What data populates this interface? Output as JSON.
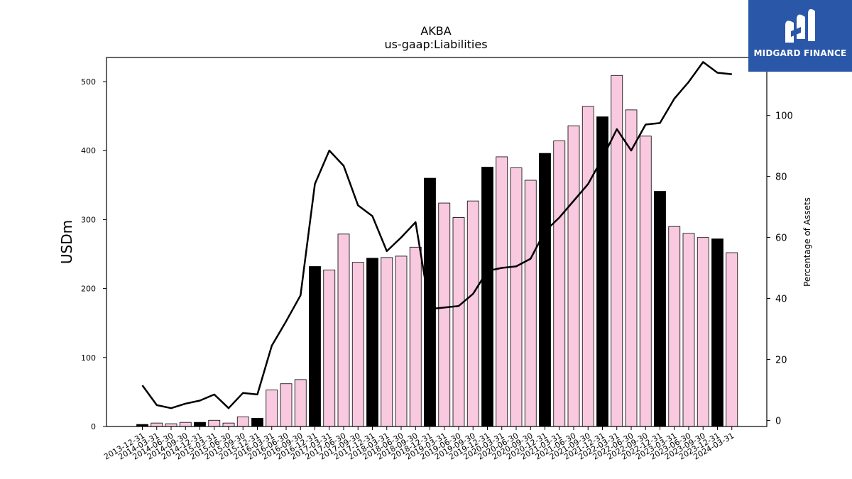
{
  "logo": {
    "text": "MIDGARD FINANCE"
  },
  "chart_data": {
    "type": "bar",
    "title": "AKBA",
    "subtitle": "us-gaap:Liabilities",
    "ylabel": "USDm",
    "y2label": "Percentage of Assets",
    "ylim": [
      0,
      535
    ],
    "y2lim": [
      -2,
      119
    ],
    "yticks": [
      0,
      100,
      200,
      300,
      400,
      500
    ],
    "y2ticks": [
      0,
      20,
      40,
      60,
      80,
      100
    ],
    "colors": {
      "annual": "#000000",
      "quarter": "#f9c9e0",
      "edge": "#000000",
      "line": "#000000"
    },
    "categories": [
      "2013-12-31",
      "2014-03-31",
      "2014-06-30",
      "2014-09-30",
      "2014-12-31",
      "2015-03-31",
      "2015-06-30",
      "2015-09-30",
      "2015-12-31",
      "2016-03-31",
      "2016-06-30",
      "2016-09-30",
      "2016-12-31",
      "2017-03-31",
      "2017-06-30",
      "2017-09-30",
      "2017-12-31",
      "2018-03-31",
      "2018-06-30",
      "2018-09-30",
      "2018-12-31",
      "2019-03-31",
      "2019-06-30",
      "2019-09-30",
      "2019-12-31",
      "2020-03-31",
      "2020-06-30",
      "2020-09-30",
      "2020-12-31",
      "2021-03-31",
      "2021-06-30",
      "2021-09-30",
      "2021-12-31",
      "2022-03-31",
      "2022-06-30",
      "2022-09-30",
      "2022-12-31",
      "2023-03-31",
      "2023-06-30",
      "2023-09-30",
      "2023-12-31",
      "2024-03-31"
    ],
    "series": [
      {
        "type": "bar",
        "values": [
          3,
          5,
          4,
          6,
          6,
          9,
          5,
          14,
          12,
          53,
          62,
          68,
          232,
          227,
          279,
          238,
          244,
          245,
          247,
          260,
          360,
          324,
          303,
          327,
          376,
          391,
          375,
          357,
          396,
          414,
          436,
          464,
          449,
          509,
          459,
          421,
          341,
          290,
          280,
          274,
          272,
          252
        ]
      },
      {
        "type": "line",
        "axis": "right",
        "values": [
          11.5,
          5,
          4,
          5.5,
          6.5,
          8.5,
          4,
          9,
          8.5,
          24.5,
          32.5,
          41,
          77.5,
          88.5,
          83.5,
          70.5,
          67,
          55.5,
          60,
          65,
          36.5,
          37,
          37.5,
          41.5,
          49,
          50,
          50.5,
          53,
          62,
          66.5,
          72,
          77.5,
          86,
          95.5,
          88.5,
          97,
          97.5,
          105.5,
          111,
          117.5,
          114,
          113.5
        ]
      }
    ]
  }
}
